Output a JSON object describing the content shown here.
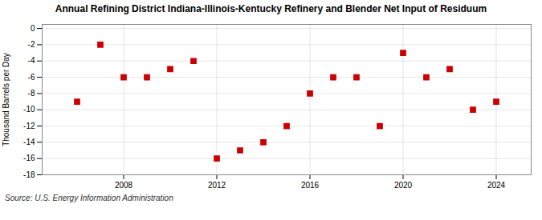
{
  "chart_data": {
    "type": "scatter",
    "title": "Annual Refining District Indiana-Illinois-Kentucky Refinery and Blender Net Input of Residuum",
    "ylabel": "Thousand Barrels per Day",
    "source": "Source: U.S. Energy Information Administration",
    "x": [
      2006,
      2007,
      2008,
      2009,
      2010,
      2011,
      2012,
      2013,
      2014,
      2015,
      2016,
      2017,
      2018,
      2019,
      2020,
      2021,
      2022,
      2023,
      2024
    ],
    "values": [
      -9,
      -2,
      -6,
      -6,
      -5,
      -4,
      -16,
      -15,
      -14,
      -12,
      -8,
      -6,
      -6,
      -12,
      -3,
      -6,
      -5,
      -10,
      -9
    ],
    "color": "#cc0000",
    "marker": "square",
    "xlim": [
      2004.5,
      2025.5
    ],
    "ylim": [
      -18,
      0.5
    ],
    "xticks": [
      2008,
      2012,
      2016,
      2020,
      2024
    ],
    "yticks": [
      0,
      -2,
      -4,
      -6,
      -8,
      -10,
      -12,
      -14,
      -16,
      -18
    ],
    "grid": true
  }
}
